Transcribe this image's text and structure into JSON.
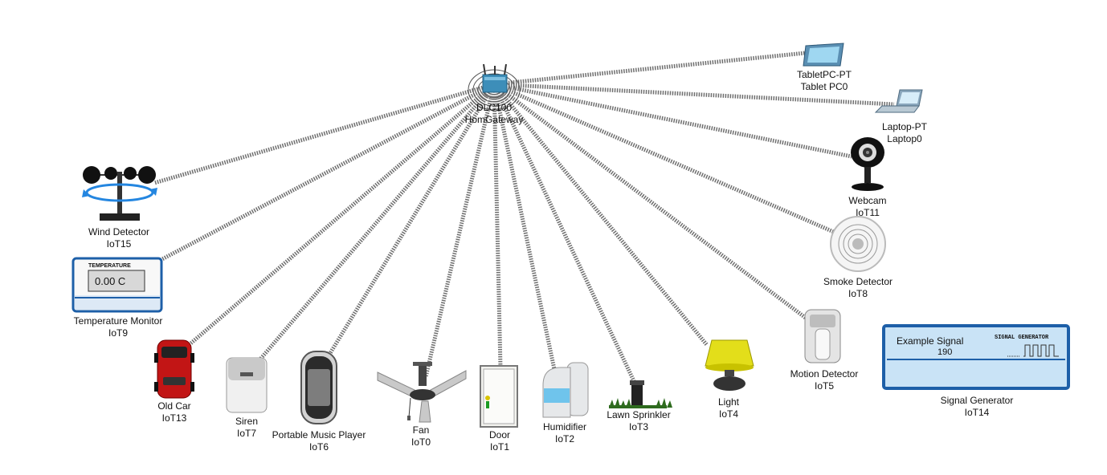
{
  "gateway": {
    "model": "DLC100",
    "name": "HomGateway"
  },
  "devices": [
    {
      "id": "tablet",
      "model": "TabletPC-PT",
      "name": "Tablet PC0"
    },
    {
      "id": "laptop",
      "model": "Laptop-PT",
      "name": "Laptop0"
    },
    {
      "id": "webcam",
      "model": "Webcam",
      "name": "IoT11"
    },
    {
      "id": "smoke",
      "model": "Smoke Detector",
      "name": "IoT8"
    },
    {
      "id": "motion",
      "model": "Motion Detector",
      "name": "IoT5"
    },
    {
      "id": "signal",
      "model": "Signal Generator",
      "name": "IoT14"
    },
    {
      "id": "light",
      "model": "Light",
      "name": "IoT4"
    },
    {
      "id": "sprinkler",
      "model": "Lawn Sprinkler",
      "name": "IoT3"
    },
    {
      "id": "humidifier",
      "model": "Humidifier",
      "name": "IoT2"
    },
    {
      "id": "door",
      "model": "Door",
      "name": "IoT1"
    },
    {
      "id": "fan",
      "model": "Fan",
      "name": "IoT0"
    },
    {
      "id": "music",
      "model": "Portable Music Player",
      "name": "IoT6"
    },
    {
      "id": "siren",
      "model": "Siren",
      "name": "IoT7"
    },
    {
      "id": "car",
      "model": "Old Car",
      "name": "IoT13"
    },
    {
      "id": "temp",
      "model": "Temperature Monitor",
      "name": "IoT9"
    },
    {
      "id": "wind",
      "model": "Wind Detector",
      "name": "IoT15"
    }
  ],
  "temperature_monitor": {
    "header": "TEMPERATURE",
    "reading": "0.00 C"
  },
  "signal_generator": {
    "header": "SIGNAL  GENERATOR",
    "signal_name": "Example Signal",
    "value": "190"
  },
  "colors": {
    "link": "#777777",
    "lcd_border": "#1d5fa8",
    "lcd_bg": "#c9e3f6"
  }
}
